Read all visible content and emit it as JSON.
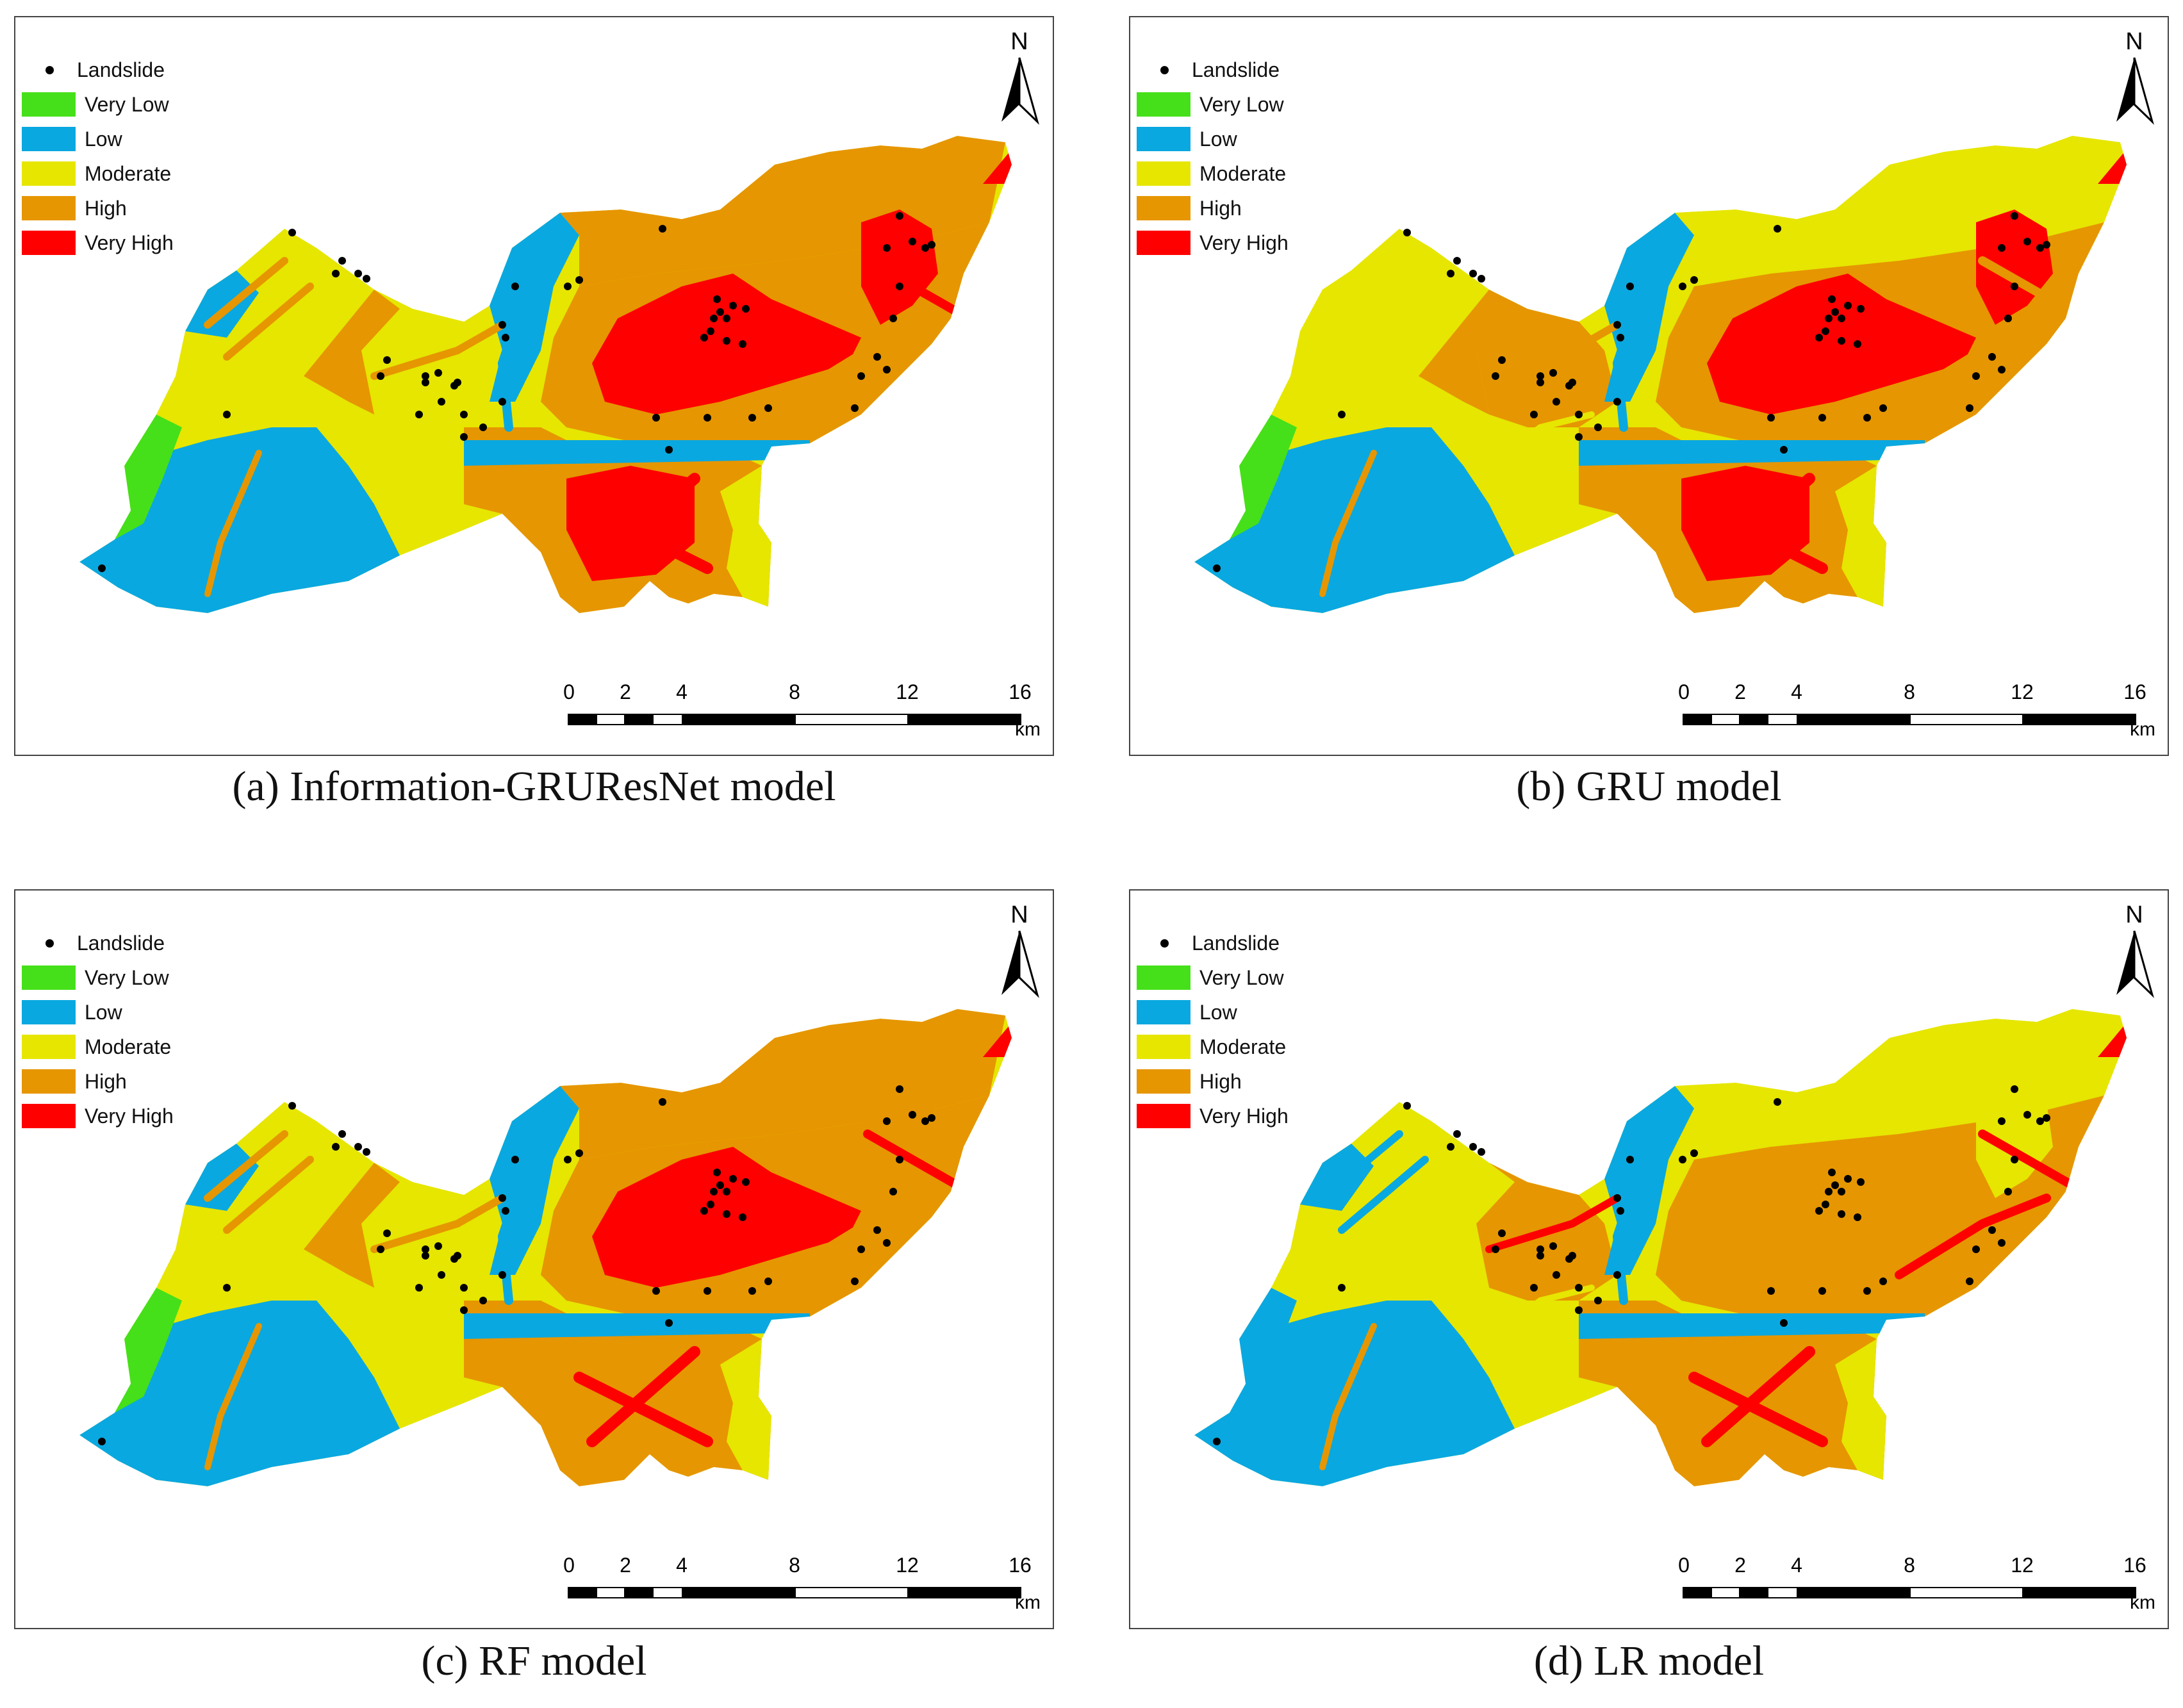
{
  "legend": {
    "landslide": "Landslide",
    "classes": [
      {
        "label": "Very Low",
        "color": "#45e019"
      },
      {
        "label": "Low",
        "color": "#0aa8e0"
      },
      {
        "label": "Moderate",
        "color": "#e6e600"
      },
      {
        "label": "High",
        "color": "#e69600"
      },
      {
        "label": "Very High",
        "color": "#ff0000"
      }
    ]
  },
  "north_label": "N",
  "scale": {
    "ticks": [
      "0",
      "2",
      "4",
      "8",
      "12",
      "16"
    ],
    "unit": "km"
  },
  "panels": [
    {
      "caption": "(a) Information-GRUResNet model"
    },
    {
      "caption": "(b) GRU model"
    },
    {
      "caption": "(c) RF model"
    },
    {
      "caption": "(d) LR model"
    }
  ]
}
